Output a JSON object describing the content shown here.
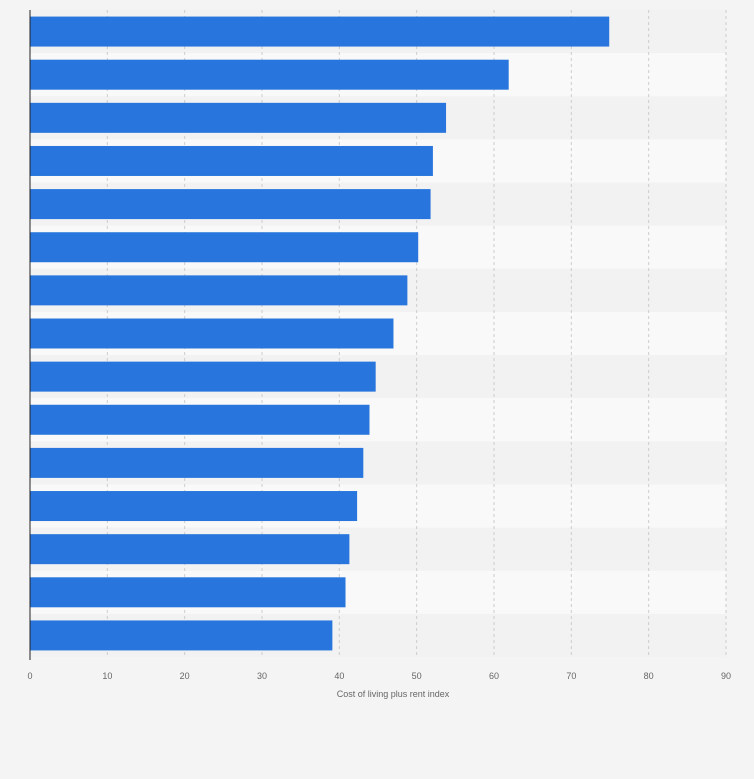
{
  "chart_data": {
    "type": "bar",
    "orientation": "horizontal",
    "categories": [
      "",
      "",
      "",
      "",
      "",
      "",
      "",
      "",
      "",
      "",
      "",
      "",
      "",
      "",
      ""
    ],
    "values": [
      74.9,
      61.9,
      53.8,
      52.1,
      51.8,
      50.2,
      48.8,
      47.0,
      44.7,
      43.9,
      43.1,
      42.3,
      41.3,
      40.8,
      39.1
    ],
    "xlabel": "Cost of living plus rent index",
    "ylabel": "",
    "xlim": [
      0,
      90
    ],
    "xticks": [
      0,
      10,
      20,
      30,
      40,
      50,
      60,
      70,
      80,
      90
    ],
    "grid": true,
    "bar_color": "#2876dd"
  },
  "colors": {
    "background": "#f4f4f4",
    "band_light": "#f9f9f9",
    "band_dark": "#f2f2f2",
    "gridline": "#cccccc",
    "axis": "#222222"
  }
}
